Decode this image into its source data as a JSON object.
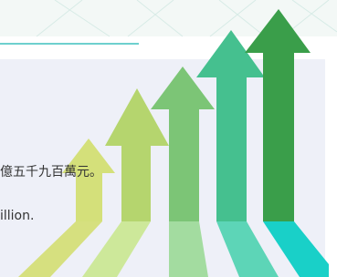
{
  "texts": {
    "line_zh": "億五千九百萬元。",
    "line_en": "illion."
  }
}
